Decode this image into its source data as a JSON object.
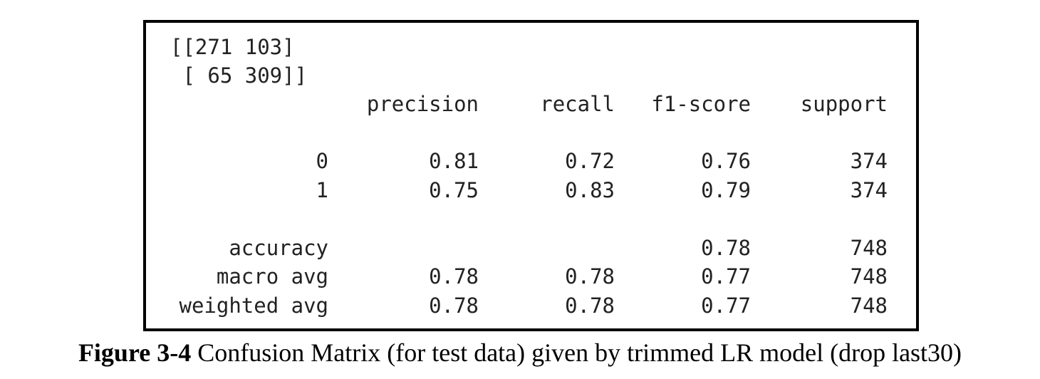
{
  "matrix": {
    "row1": "[[271 103]",
    "row2": " [ 65 309]]"
  },
  "report": {
    "headers": [
      "precision",
      "recall",
      "f1-score",
      "support"
    ],
    "rows": [
      {
        "label": "0",
        "precision": "0.81",
        "recall": "0.72",
        "f1": "0.76",
        "support": "374"
      },
      {
        "label": "1",
        "precision": "0.75",
        "recall": "0.83",
        "f1": "0.79",
        "support": "374"
      },
      {
        "label": "accuracy",
        "precision": "",
        "recall": "",
        "f1": "0.78",
        "support": "748"
      },
      {
        "label": "macro avg",
        "precision": "0.78",
        "recall": "0.78",
        "f1": "0.77",
        "support": "748"
      },
      {
        "label": "weighted avg",
        "precision": "0.78",
        "recall": "0.78",
        "f1": "0.77",
        "support": "748"
      }
    ]
  },
  "caption": {
    "label": "Figure 3-4",
    "text": " Confusion Matrix (for test data) given by trimmed LR model (drop last30)"
  }
}
